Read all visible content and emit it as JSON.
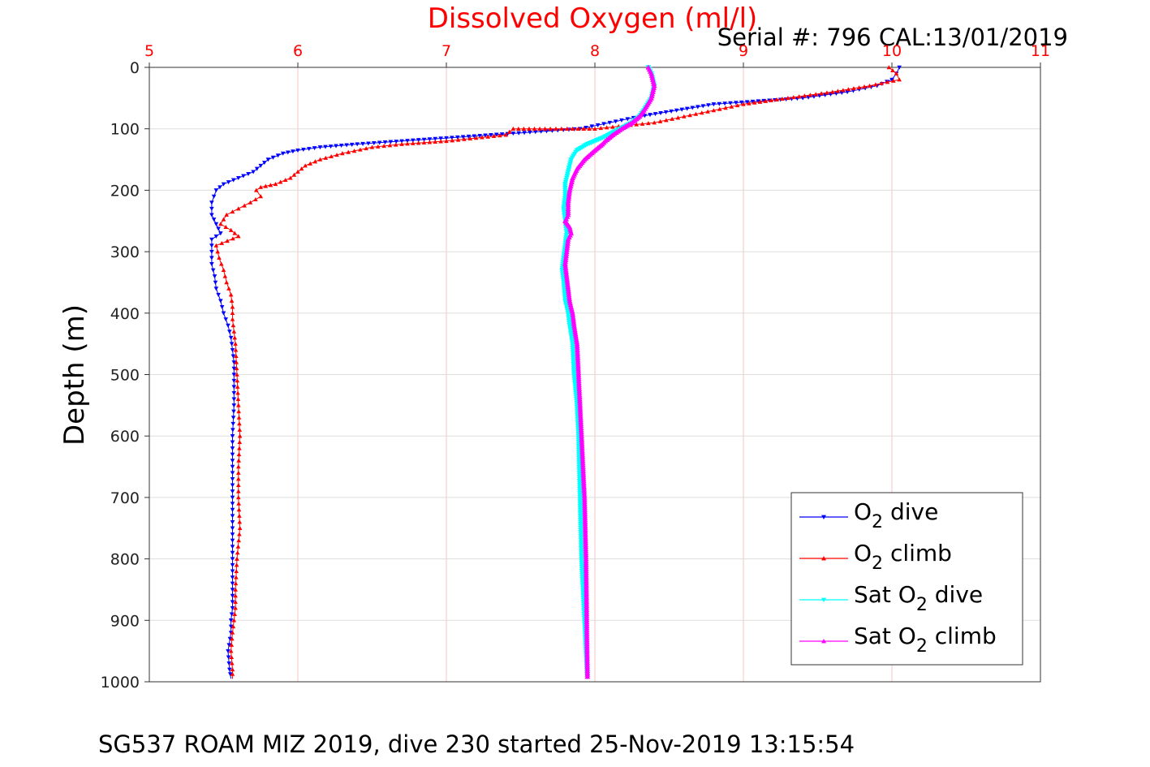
{
  "chart_data": {
    "type": "line",
    "title": "Dissolved Oxygen (ml/l)",
    "subtitle": "Serial #: 796  CAL:13/01/2019",
    "footer": "SG537 ROAM MIZ 2019, dive 230 started 25-Nov-2019 13:15:54",
    "xlabel": "",
    "ylabel": "Depth (m)",
    "xlim": [
      5,
      11
    ],
    "ylim": [
      0,
      1000
    ],
    "y_reversed": true,
    "x_axis_position": "top",
    "x_ticks": [
      "5",
      "6",
      "7",
      "8",
      "9",
      "10",
      "11"
    ],
    "y_ticks": [
      "0",
      "100",
      "200",
      "300",
      "400",
      "500",
      "600",
      "700",
      "800",
      "900",
      "1000"
    ],
    "grid": true,
    "legend_position": "bottom-right",
    "colors": {
      "title": "#ff0000",
      "x_ticks": "#ff0000",
      "grid_x": "#f4c4c4",
      "grid_y": "#dddddd"
    },
    "series": [
      {
        "legend_main": "O",
        "legend_sub": "2",
        "legend_suffix": " dive",
        "color": "#0000ff",
        "marker": "triangle-down",
        "x": [
          10.05,
          10.03,
          10.0,
          9.9,
          9.7,
          9.4,
          9.1,
          8.8,
          8.55,
          8.3,
          8.1,
          7.9,
          7.6,
          7.3,
          7.0,
          6.7,
          6.4,
          6.15,
          6.0,
          5.9,
          5.8,
          5.75,
          5.7,
          5.6,
          5.5,
          5.45,
          5.42,
          5.42,
          5.45,
          5.48,
          5.42,
          5.42,
          5.42,
          5.44,
          5.45,
          5.48,
          5.5,
          5.53,
          5.55,
          5.56,
          5.57,
          5.57,
          5.57,
          5.56,
          5.56,
          5.56,
          5.56,
          5.56,
          5.56,
          5.56,
          5.55,
          5.55,
          5.53,
          5.54,
          5.55
        ],
        "y": [
          0,
          10,
          20,
          30,
          40,
          50,
          55,
          60,
          70,
          80,
          90,
          100,
          105,
          110,
          115,
          120,
          125,
          130,
          135,
          140,
          150,
          160,
          170,
          180,
          190,
          200,
          220,
          240,
          255,
          270,
          280,
          300,
          320,
          340,
          360,
          380,
          400,
          420,
          440,
          460,
          480,
          500,
          550,
          600,
          650,
          700,
          750,
          800,
          850,
          880,
          900,
          920,
          950,
          980,
          995
        ]
      },
      {
        "legend_main": "O",
        "legend_sub": "2",
        "legend_suffix": " climb",
        "color": "#ff0000",
        "marker": "triangle-up",
        "x": [
          9.98,
          10.03,
          10.05,
          9.85,
          9.6,
          9.3,
          9.0,
          8.8,
          8.6,
          8.4,
          8.2,
          8.0,
          7.7,
          7.45,
          7.4,
          7.2,
          7.0,
          6.7,
          6.5,
          6.3,
          6.15,
          6.05,
          6.0,
          5.95,
          5.85,
          5.75,
          5.72,
          5.75,
          5.68,
          5.6,
          5.52,
          5.48,
          5.55,
          5.6,
          5.45,
          5.47,
          5.5,
          5.52,
          5.55,
          5.56,
          5.56,
          5.58,
          5.59,
          5.6,
          5.61,
          5.6,
          5.6,
          5.61,
          5.59,
          5.58,
          5.58,
          5.57,
          5.56,
          5.55,
          5.56,
          5.56
        ],
        "y": [
          0,
          10,
          20,
          30,
          40,
          50,
          60,
          70,
          80,
          90,
          95,
          100,
          100,
          100,
          110,
          115,
          120,
          125,
          130,
          140,
          150,
          160,
          170,
          180,
          190,
          195,
          200,
          210,
          220,
          230,
          240,
          255,
          265,
          275,
          290,
          310,
          330,
          350,
          370,
          390,
          410,
          450,
          500,
          550,
          600,
          650,
          700,
          750,
          800,
          850,
          880,
          900,
          920,
          950,
          980,
          995
        ]
      },
      {
        "legend_main": "Sat O",
        "legend_sub": "2",
        "legend_suffix": " dive",
        "color": "#00ffff",
        "marker": "triangle-down",
        "x": [
          8.36,
          8.38,
          8.4,
          8.38,
          8.33,
          8.3,
          8.25,
          8.17,
          8.05,
          7.95,
          7.88,
          7.84,
          7.82,
          7.8,
          7.8,
          7.79,
          7.8,
          7.81,
          7.8,
          7.79,
          7.78,
          7.79,
          7.8,
          7.82,
          7.83,
          7.85,
          7.86,
          7.88,
          7.89,
          7.9,
          7.91,
          7.93,
          7.94,
          7.95
        ],
        "y": [
          0,
          10,
          30,
          50,
          70,
          80,
          90,
          100,
          115,
          125,
          135,
          150,
          170,
          190,
          210,
          230,
          250,
          270,
          290,
          310,
          330,
          350,
          380,
          400,
          420,
          450,
          500,
          550,
          600,
          700,
          800,
          900,
          950,
          995
        ]
      },
      {
        "legend_main": "Sat O",
        "legend_sub": "2",
        "legend_suffix": " climb",
        "color": "#ff00ff",
        "marker": "triangle-up",
        "x": [
          8.36,
          8.38,
          8.4,
          8.38,
          8.33,
          8.3,
          8.25,
          8.18,
          8.12,
          8.07,
          8.05,
          8.0,
          7.93,
          7.88,
          7.85,
          7.83,
          7.82,
          7.82,
          7.8,
          7.83,
          7.84,
          7.82,
          7.81,
          7.8,
          7.81,
          7.82,
          7.83,
          7.85,
          7.86,
          7.88,
          7.89,
          7.9,
          7.91,
          7.93,
          7.94,
          7.95
        ],
        "y": [
          0,
          10,
          30,
          50,
          70,
          80,
          90,
          100,
          110,
          120,
          125,
          135,
          150,
          165,
          180,
          200,
          220,
          240,
          250,
          260,
          270,
          280,
          300,
          320,
          340,
          360,
          380,
          400,
          420,
          450,
          500,
          550,
          600,
          700,
          800,
          995
        ]
      }
    ]
  }
}
